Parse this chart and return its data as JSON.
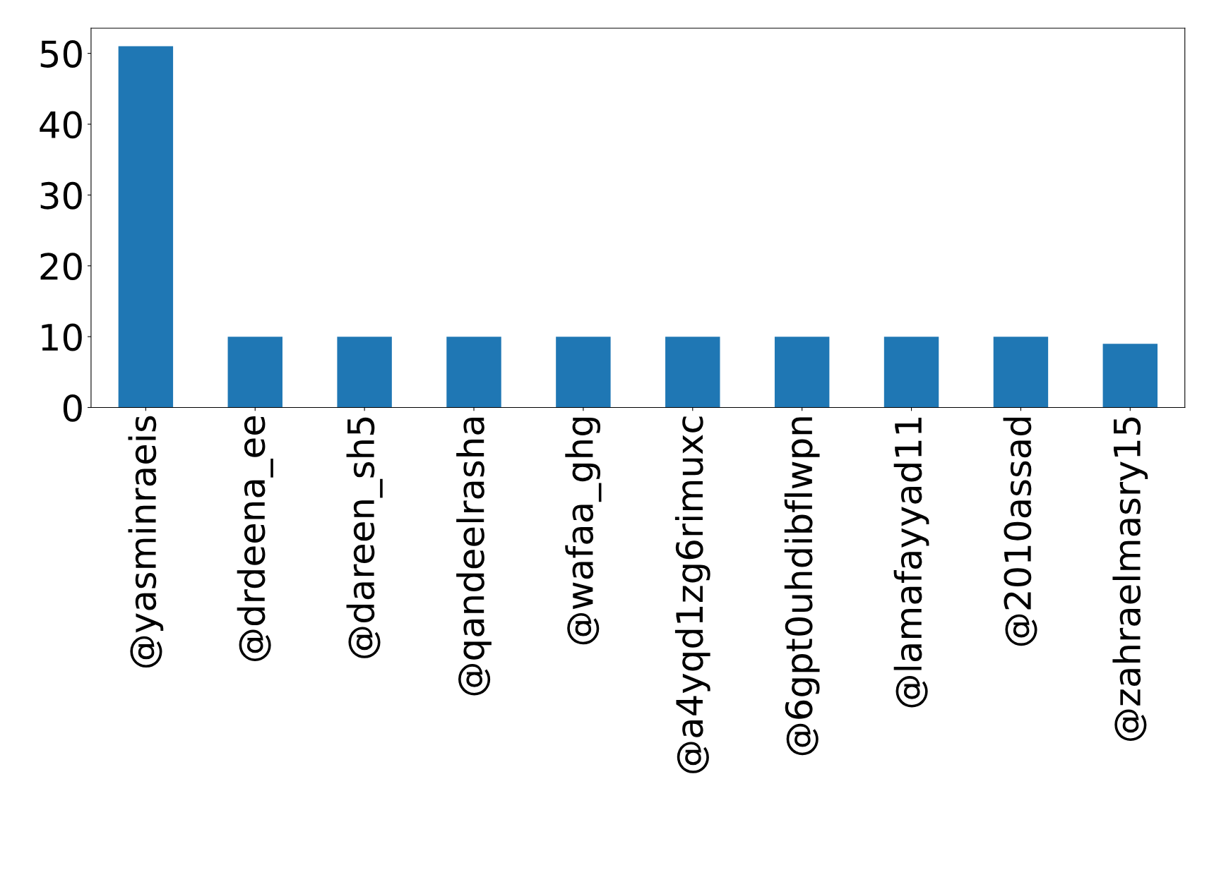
{
  "chart_data": {
    "type": "bar",
    "categories": [
      "@yasminraeis",
      "@drdeena_ee",
      "@dareen_sh5",
      "@qandeelrasha",
      "@wafaa_ghg",
      "@a4yqd1zg6rimuxc",
      "@6gpt0uhdibflwpn",
      "@lamafayyad11",
      "@2010assad",
      "@zahraelmasry15"
    ],
    "values": [
      51,
      10,
      10,
      10,
      10,
      10,
      10,
      10,
      10,
      9
    ],
    "color": "#1f77b4",
    "ylim": [
      0,
      53.55
    ],
    "yticks": [
      0,
      10,
      20,
      30,
      40,
      50
    ],
    "grid": false,
    "legend": false
  }
}
